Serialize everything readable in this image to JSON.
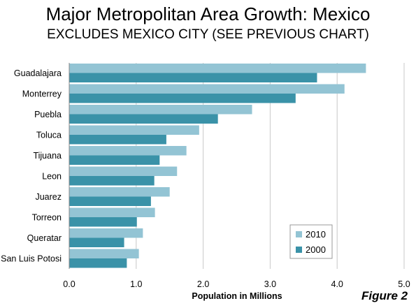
{
  "title": "Major Metropolitan Area Growth: Mexico",
  "subtitle": "EXCLUDES MEXICO CITY (SEE PREVIOUS CHART)",
  "figure_label": "Figure 2",
  "chart_data": {
    "type": "bar",
    "orientation": "horizontal",
    "categories": [
      "Guadalajara",
      "Monterrey",
      "Puebla",
      "Toluca",
      "Tijuana",
      "Leon",
      "Juarez",
      "Torreon",
      "Queratar",
      "San Luis Potosi"
    ],
    "series": [
      {
        "name": "2010",
        "color": "#93C4D4",
        "values": [
          4.43,
          4.11,
          2.73,
          1.94,
          1.75,
          1.61,
          1.5,
          1.28,
          1.1,
          1.04
        ]
      },
      {
        "name": "2000",
        "color": "#3A92A8",
        "values": [
          3.7,
          3.38,
          2.22,
          1.45,
          1.35,
          1.27,
          1.22,
          1.01,
          0.82,
          0.86
        ]
      }
    ],
    "xlabel": "Population in Millions",
    "xlim": [
      0,
      5
    ],
    "xticks": [
      "0.0",
      "1.0",
      "2.0",
      "3.0",
      "4.0",
      "5.0"
    ],
    "grid": true,
    "legend_position": "bottom-right"
  }
}
